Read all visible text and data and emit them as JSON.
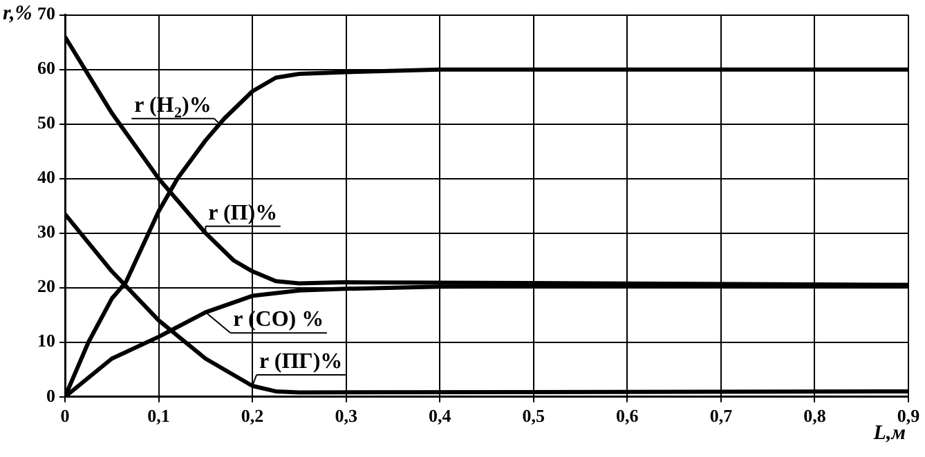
{
  "chart_data": {
    "type": "line",
    "xlabel": "L,м",
    "ylabel": "r,%",
    "xlim": [
      0,
      0.9
    ],
    "ylim": [
      0,
      70
    ],
    "xticks": [
      0,
      {
        "value": 0.1,
        "label": "0,1"
      },
      {
        "value": 0.2,
        "label": "0,2"
      },
      {
        "value": 0.3,
        "label": "0,3"
      },
      {
        "value": 0.4,
        "label": "0,4"
      },
      {
        "value": 0.5,
        "label": "0,5"
      },
      {
        "value": 0.6,
        "label": "0,6"
      },
      {
        "value": 0.7,
        "label": "0,7"
      },
      {
        "value": 0.8,
        "label": "0,8"
      },
      {
        "value": 0.9,
        "label": "0,9"
      }
    ],
    "yticks": [
      0,
      10,
      20,
      30,
      40,
      50,
      60,
      70
    ],
    "grid": true,
    "legend": false,
    "marker": "none",
    "line_style": "solid",
    "series": [
      {
        "color": "#000000",
        "x": [
          0,
          0.025,
          0.05,
          0.065,
          0.1,
          0.12,
          0.15,
          0.17,
          0.2,
          0.225,
          0.25,
          0.3,
          0.4,
          0.9
        ],
        "values": [
          0,
          10,
          18,
          21,
          34,
          40,
          47,
          51,
          56,
          58.5,
          59.2,
          59.5,
          60,
          60
        ]
      },
      {
        "color": "#000000",
        "x": [
          0,
          0.05,
          0.1,
          0.12,
          0.15,
          0.18,
          0.2,
          0.225,
          0.25,
          0.3,
          0.9
        ],
        "values": [
          66,
          52,
          40,
          36,
          30,
          25,
          23,
          21.2,
          20.8,
          21,
          20.5
        ]
      },
      {
        "color": "#000000",
        "x": [
          0,
          0.05,
          0.1,
          0.15,
          0.2,
          0.25,
          0.3,
          0.4,
          0.9
        ],
        "values": [
          0,
          7,
          11,
          15.5,
          18.5,
          19.5,
          19.8,
          20.2,
          20.5
        ]
      },
      {
        "color": "#000000",
        "x": [
          0,
          0.05,
          0.1,
          0.15,
          0.2,
          0.225,
          0.25,
          0.9
        ],
        "values": [
          33.5,
          23,
          14,
          7,
          2,
          1,
          0.8,
          1
        ]
      }
    ],
    "annotations": [
      {
        "text": "r (H$_{2}$)%",
        "x": 0.165,
        "y": 50
      },
      {
        "text": "r (П)%",
        "x": 0.15,
        "y": 30
      },
      {
        "text": "r (CO) %",
        "x": 0.15,
        "y": 15.5
      },
      {
        "text": "r (ПГ)%",
        "x": 0.2,
        "y": 2
      }
    ]
  }
}
